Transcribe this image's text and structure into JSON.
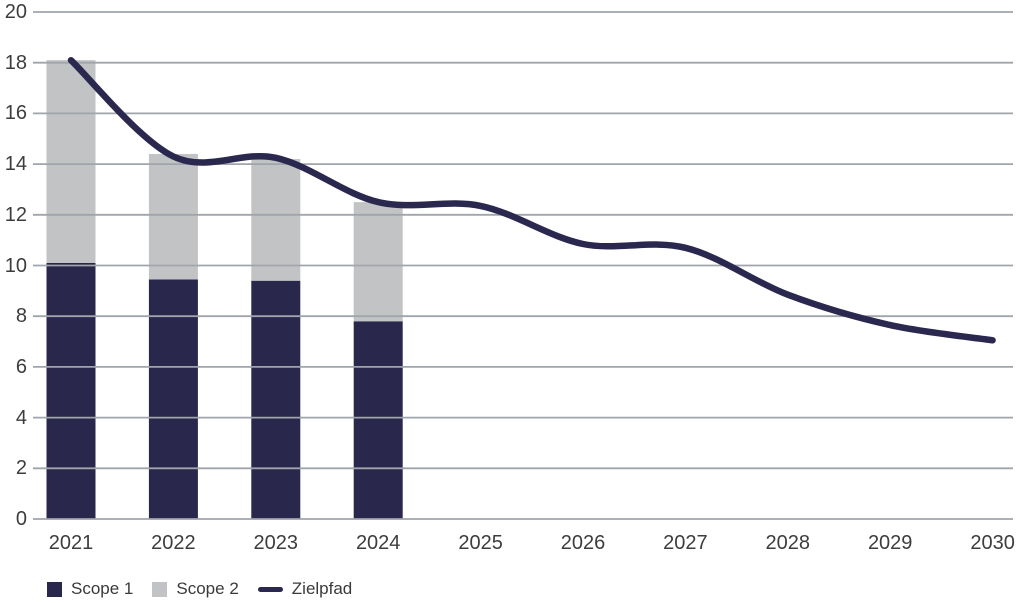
{
  "chart_data": {
    "type": "bar",
    "subtype": "stacked-bar-with-line",
    "title": "",
    "xlabel": "",
    "ylabel": "",
    "categories": [
      "2021",
      "2022",
      "2023",
      "2024",
      "2025",
      "2026",
      "2027",
      "2028",
      "2029",
      "2030"
    ],
    "series": [
      {
        "name": "Scope 1",
        "type": "bar",
        "color": "#29274B",
        "values": [
          10.1,
          9.45,
          9.4,
          7.8,
          null,
          null,
          null,
          null,
          null,
          null
        ]
      },
      {
        "name": "Scope 2",
        "type": "bar",
        "color": "#C2C3C5",
        "values": [
          8.0,
          4.95,
          4.8,
          4.7,
          null,
          null,
          null,
          null,
          null,
          null
        ]
      },
      {
        "name": "Zielpfad",
        "type": "line",
        "color": "#2A284E",
        "values": [
          18.1,
          14.3,
          14.25,
          12.5,
          12.35,
          10.85,
          10.7,
          8.85,
          7.65,
          7.05
        ]
      }
    ],
    "bar_totals": [
      18.1,
      14.4,
      14.2,
      12.5
    ],
    "ylim": [
      0,
      20
    ],
    "yticks": [
      0,
      2,
      4,
      6,
      8,
      10,
      12,
      14,
      16,
      18,
      20
    ],
    "grid": "horizontal",
    "grid_color": "#A0A4AB",
    "text_color": "#3d3d3f",
    "legend_position": "bottom-left",
    "legend": [
      "Scope 1",
      "Scope 2",
      "Zielpfad"
    ]
  }
}
